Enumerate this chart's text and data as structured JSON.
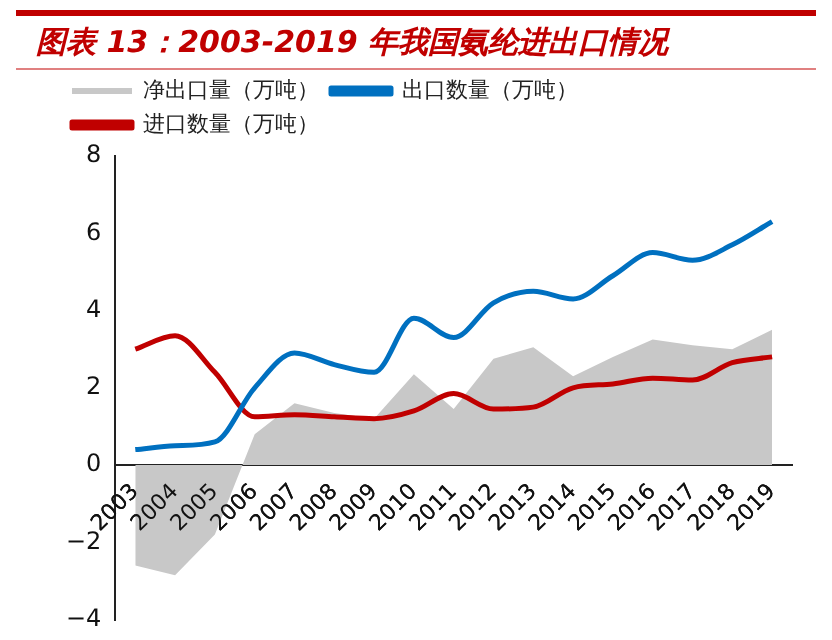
{
  "chart_data": {
    "type": "line",
    "title": "图表 13：2003-2019 年我国氨纶进出口情况",
    "categories": [
      "2003",
      "2004",
      "2005",
      "2006",
      "2007",
      "2008",
      "2009",
      "2010",
      "2011",
      "2012",
      "2013",
      "2014",
      "2015",
      "2016",
      "2017",
      "2018",
      "2019"
    ],
    "series": [
      {
        "name": "净出口量（万吨）",
        "type": "area",
        "color": "#c8c8c8",
        "values": [
          -2.6,
          -2.85,
          -1.8,
          0.8,
          1.6,
          1.35,
          1.2,
          2.35,
          1.45,
          2.75,
          3.05,
          2.3,
          2.8,
          3.25,
          3.1,
          3.0,
          3.5
        ]
      },
      {
        "name": "出口数量（万吨）",
        "type": "line",
        "color": "#0070c0",
        "values": [
          0.4,
          0.5,
          0.6,
          2.0,
          2.9,
          2.6,
          2.4,
          3.8,
          3.3,
          4.2,
          4.5,
          4.3,
          4.9,
          5.5,
          5.3,
          5.7,
          6.3
        ]
      },
      {
        "name": "进口数量（万吨）",
        "type": "line",
        "color": "#c00000",
        "values": [
          3.0,
          3.35,
          2.4,
          1.25,
          1.3,
          1.25,
          1.2,
          1.4,
          1.85,
          1.45,
          1.5,
          2.0,
          2.1,
          2.25,
          2.2,
          2.65,
          2.8
        ]
      }
    ],
    "ylim": [
      -4,
      8
    ],
    "yticks": [
      {
        "value": -4,
        "label": "−4"
      },
      {
        "value": -2,
        "label": "−2"
      },
      0,
      2,
      4,
      6,
      8
    ],
    "grid": false,
    "legend": "top left"
  }
}
